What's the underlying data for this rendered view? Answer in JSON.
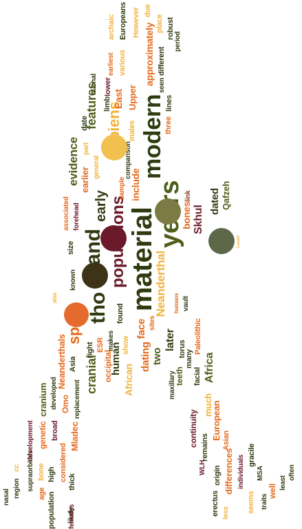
{
  "palette": {
    "olive": "#4f5f1a",
    "dark_olive": "#2f3b10",
    "orange": "#e56a1c",
    "amber": "#f2b33d",
    "maroon": "#6b1a2a",
    "brown": "#8a3a1a"
  },
  "words": [
    "material",
    "modern",
    "years",
    "and",
    "tho",
    "populations",
    "spec",
    "sapiens",
    "early",
    "Neanderthal",
    "features",
    "evidence",
    "cranial",
    "human",
    "Africa",
    "later",
    "two",
    "dating",
    "face",
    "include",
    "bones",
    "Skhul",
    "dated",
    "Qafzeh",
    "link",
    "East",
    "Upper",
    "males",
    "different",
    "approximately",
    "archaic",
    "Europeans",
    "However",
    "place",
    "due",
    "robust",
    "period",
    "earliest",
    "various",
    "cranium",
    "nuchal",
    "lower",
    "limb",
    "seen",
    "three",
    "lines",
    "date",
    "part",
    "general",
    "sample",
    "found",
    "known",
    "size",
    "forehead",
    "associated",
    "earlier",
    "also",
    "makes",
    "ESR",
    "occipital",
    "right",
    "Asia",
    "Neanderthals",
    "African",
    "show",
    "sites",
    "vault",
    "humans",
    "Paleolithic",
    "torus",
    "many",
    "maxillary",
    "teeth",
    "facial",
    "much",
    "European",
    "Asian",
    "continuity",
    "remains",
    "origin",
    "erectus",
    "WLH",
    "differences",
    "individuals",
    "MSA",
    "gracile",
    "seems",
    "traits",
    "well",
    "least",
    "often",
    "less",
    "replacement",
    "Omo",
    "developed",
    "genetic",
    "broad",
    "considered",
    "Mladec",
    "thick",
    "likely",
    "high",
    "population",
    "females",
    "age",
    "bone",
    "supraorbitals",
    "development",
    "region",
    "nasal",
    "cc",
    "comparison",
    "Levant"
  ],
  "dots": [
    {
      "color": "#f2c04f"
    },
    {
      "color": "#7c7a45"
    },
    {
      "color": "#6b1a2a"
    },
    {
      "color": "#5c6847"
    },
    {
      "color": "#3d3418"
    },
    {
      "color": "#e56a2e"
    }
  ]
}
